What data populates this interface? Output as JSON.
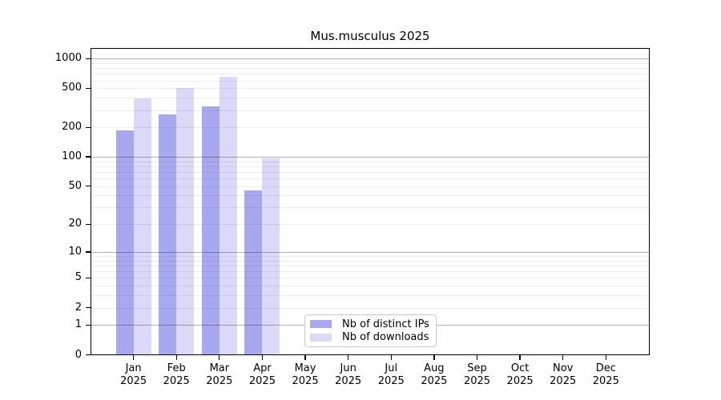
{
  "title": "Mus.musculus 2025",
  "chart_data": {
    "type": "bar",
    "title": "Mus.musculus 2025",
    "categories": [
      "Jan 2025",
      "Feb 2025",
      "Mar 2025",
      "Apr 2025",
      "May 2025",
      "Jun 2025",
      "Jul 2025",
      "Aug 2025",
      "Sep 2025",
      "Oct 2025",
      "Nov 2025",
      "Dec 2025"
    ],
    "month_labels": [
      "Jan",
      "Feb",
      "Mar",
      "Apr",
      "May",
      "Jun",
      "Jul",
      "Aug",
      "Sep",
      "Oct",
      "Nov",
      "Dec"
    ],
    "year_label": "2025",
    "series": [
      {
        "name": "Nb of distinct IPs",
        "color": "#a8a8f0",
        "values": [
          185,
          270,
          330,
          45,
          null,
          null,
          null,
          null,
          null,
          null,
          null,
          null
        ]
      },
      {
        "name": "Nb of downloads",
        "color": "#dadaf8",
        "values": [
          395,
          500,
          650,
          97,
          null,
          null,
          null,
          null,
          null,
          null,
          null,
          null
        ]
      }
    ],
    "y_axis": {
      "scale": "log1p",
      "tick_values": [
        0,
        1,
        2,
        5,
        10,
        20,
        50,
        100,
        200,
        500,
        1000
      ],
      "tick_labels": [
        "0",
        "1",
        "2",
        "5",
        "10",
        "20",
        "50",
        "100",
        "200",
        "500",
        "1000"
      ],
      "major_grid_values": [
        1,
        10,
        100,
        1000
      ],
      "minor_grid_values": [
        2,
        3,
        4,
        5,
        6,
        7,
        8,
        9,
        20,
        30,
        40,
        50,
        60,
        70,
        80,
        90,
        200,
        300,
        400,
        500,
        600,
        700,
        800,
        900
      ],
      "ymin": 0,
      "ymax": 1280
    },
    "xlabel": "",
    "ylabel": "",
    "grid": true,
    "legend_position": "lower-center"
  },
  "legend": {
    "items": [
      {
        "label": "Nb of distinct IPs",
        "color": "#a8a8f0"
      },
      {
        "label": "Nb of downloads",
        "color": "#dadaf8"
      }
    ]
  },
  "colors": {
    "bar_distinct_ips": "#a8a8f0",
    "bar_downloads": "#dadaf8",
    "major_grid": "#b2b2b2",
    "minor_grid": "#ececec",
    "axis": "#000000",
    "legend_border": "#c9c9c9",
    "background": "#ffffff"
  }
}
